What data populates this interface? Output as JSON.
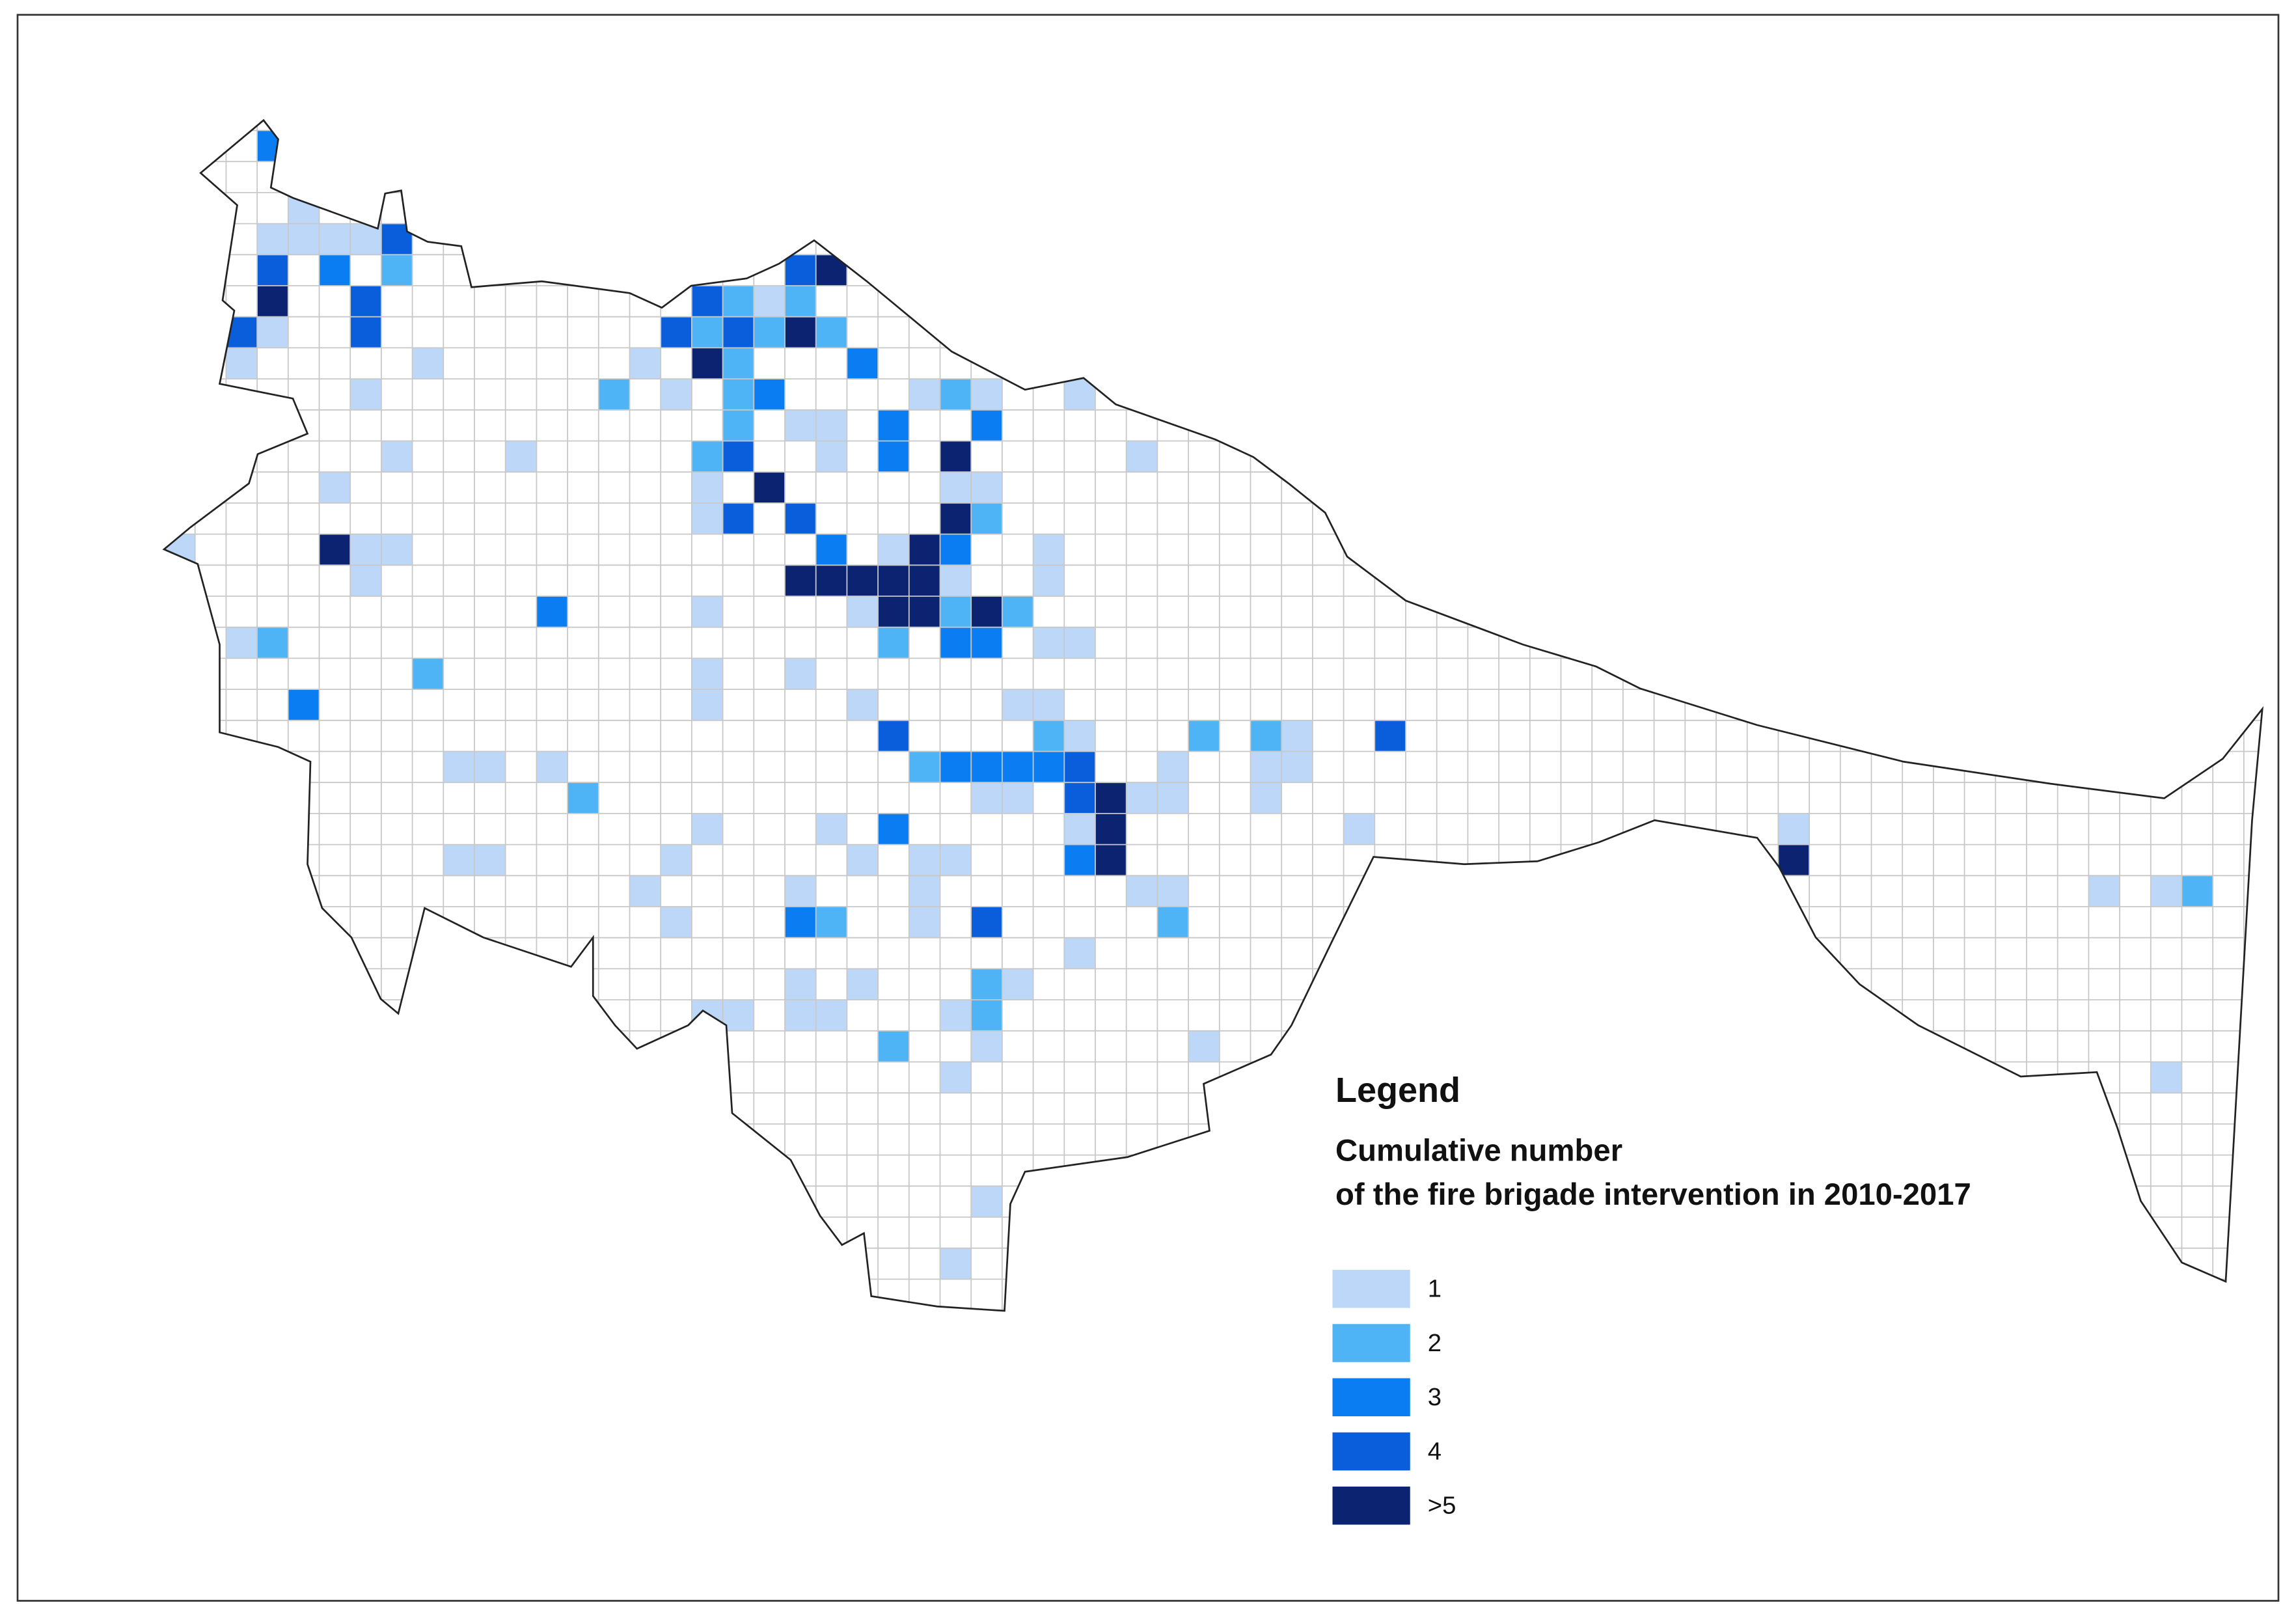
{
  "legend": {
    "title": "Legend",
    "subtitle_lines": [
      "Cumulative number",
      "of the fire brigade intervention in 2010-2017"
    ],
    "items": [
      {
        "label": "1",
        "color": "#bdd7f8"
      },
      {
        "label": "2",
        "color": "#4fb4f5"
      },
      {
        "label": "3",
        "color": "#0b7df3"
      },
      {
        "label": "4",
        "color": "#0a5edb"
      },
      {
        "label": ">5",
        "color": "#0b2370"
      }
    ]
  }
}
